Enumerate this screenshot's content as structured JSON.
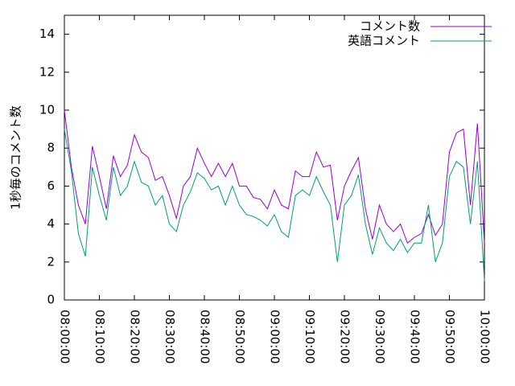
{
  "chart_data": {
    "type": "line",
    "ylabel": "1秒毎のコメント数",
    "x": [
      "08:00:00",
      "08:02:00",
      "08:04:00",
      "08:06:00",
      "08:08:00",
      "08:10:00",
      "08:12:00",
      "08:14:00",
      "08:16:00",
      "08:18:00",
      "08:20:00",
      "08:22:00",
      "08:24:00",
      "08:26:00",
      "08:28:00",
      "08:30:00",
      "08:32:00",
      "08:34:00",
      "08:36:00",
      "08:38:00",
      "08:40:00",
      "08:42:00",
      "08:44:00",
      "08:46:00",
      "08:48:00",
      "08:50:00",
      "08:52:00",
      "08:54:00",
      "08:56:00",
      "08:58:00",
      "09:00:00",
      "09:02:00",
      "09:04:00",
      "09:06:00",
      "09:08:00",
      "09:10:00",
      "09:12:00",
      "09:14:00",
      "09:16:00",
      "09:18:00",
      "09:20:00",
      "09:22:00",
      "09:24:00",
      "09:26:00",
      "09:28:00",
      "09:30:00",
      "09:32:00",
      "09:34:00",
      "09:36:00",
      "09:38:00",
      "09:40:00",
      "09:42:00",
      "09:44:00",
      "09:46:00",
      "09:48:00",
      "09:50:00",
      "09:52:00",
      "09:54:00",
      "09:56:00",
      "09:58:00",
      "10:00:00"
    ],
    "series": [
      {
        "name": "コメント数",
        "color": "#9400d3",
        "values": [
          10.0,
          7.0,
          5.0,
          4.0,
          8.1,
          6.5,
          4.8,
          7.6,
          6.5,
          7.1,
          8.7,
          7.8,
          7.5,
          6.3,
          6.5,
          5.5,
          4.3,
          6.0,
          6.5,
          8.0,
          7.2,
          6.5,
          7.2,
          6.5,
          7.2,
          6.0,
          6.0,
          5.4,
          5.3,
          4.8,
          5.8,
          5.0,
          4.8,
          6.8,
          6.5,
          6.5,
          7.8,
          7.0,
          7.1,
          4.2,
          6.0,
          6.8,
          7.5,
          4.8,
          3.2,
          5.0,
          4.0,
          3.6,
          4.0,
          3.0,
          3.3,
          3.5,
          4.5,
          3.4,
          4.0,
          7.8,
          8.8,
          9.0,
          5.0,
          9.3,
          3.0
        ]
      },
      {
        "name": "英語コメント",
        "color": "#009e73",
        "values": [
          9.0,
          6.8,
          3.5,
          2.3,
          7.0,
          5.5,
          4.2,
          7.0,
          5.5,
          6.0,
          7.3,
          6.2,
          6.0,
          5.0,
          5.5,
          4.0,
          3.6,
          5.0,
          5.7,
          6.7,
          6.4,
          5.8,
          6.0,
          5.0,
          6.0,
          5.0,
          4.5,
          4.4,
          4.2,
          3.9,
          4.5,
          3.6,
          3.3,
          5.5,
          5.8,
          5.5,
          6.5,
          5.7,
          5.0,
          2.0,
          5.0,
          5.5,
          6.6,
          4.0,
          2.4,
          3.8,
          3.0,
          2.6,
          3.2,
          2.5,
          3.0,
          3.0,
          5.0,
          2.0,
          3.0,
          6.5,
          7.3,
          7.0,
          4.0,
          7.3,
          1.0
        ]
      }
    ],
    "xlim": [
      "08:00:00",
      "10:00:00"
    ],
    "xticks": [
      "08:00:00",
      "08:10:00",
      "08:20:00",
      "08:30:00",
      "08:40:00",
      "08:50:00",
      "09:00:00",
      "09:10:00",
      "09:20:00",
      "09:30:00",
      "09:40:00",
      "09:50:00",
      "10:00:00"
    ],
    "ylim": [
      0,
      15
    ],
    "yticks": [
      0,
      2,
      4,
      6,
      8,
      10,
      12,
      14
    ],
    "legend": "top-right"
  }
}
